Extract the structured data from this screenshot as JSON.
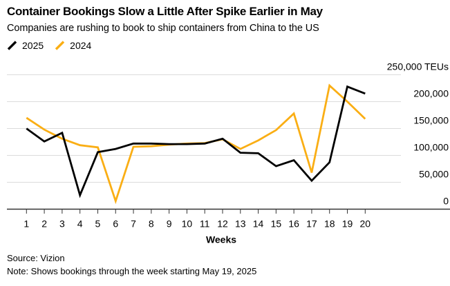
{
  "colors": {
    "background": "#FFFFFF",
    "grid": "#DBDBDB",
    "axis": "#333333",
    "text": "#000000"
  },
  "chart_data": {
    "type": "line",
    "title": "Container Bookings Slow a Little After Spike Earlier in May",
    "subtitle": "Companies are rushing to book to ship containers from China to the US",
    "xlabel": "Weeks",
    "ylabel_unit": "TEUs",
    "x": [
      1,
      2,
      3,
      4,
      5,
      6,
      7,
      8,
      9,
      10,
      11,
      12,
      13,
      14,
      15,
      16,
      17,
      18,
      19,
      20
    ],
    "ylim": [
      0,
      250000
    ],
    "grid": "horizontal",
    "legend_position": "top-left",
    "yticks": [
      {
        "value": 250000,
        "label": "250,000 TEUs"
      },
      {
        "value": 200000,
        "label": "200,000"
      },
      {
        "value": 150000,
        "label": "150,000"
      },
      {
        "value": 100000,
        "label": "100,000"
      },
      {
        "value": 50000,
        "label": "50,000"
      },
      {
        "value": 0,
        "label": "0"
      }
    ],
    "series": [
      {
        "name": "2025",
        "color": "#000000",
        "values": [
          150000,
          126000,
          142000,
          26000,
          106000,
          112000,
          122000,
          122000,
          121000,
          121000,
          122000,
          131000,
          105000,
          104000,
          80000,
          91000,
          53000,
          87000,
          228000,
          215000
        ]
      },
      {
        "name": "2024",
        "color": "#FAAE14",
        "values": [
          170000,
          148000,
          131000,
          119000,
          115000,
          15000,
          116000,
          117000,
          120000,
          122000,
          123000,
          130000,
          112000,
          128000,
          147000,
          178000,
          68000,
          230000,
          200000,
          168000
        ]
      }
    ]
  },
  "footer": {
    "source": "Source: Vizion",
    "note": "Note: Shows bookings through the week starting May 19, 2025"
  }
}
